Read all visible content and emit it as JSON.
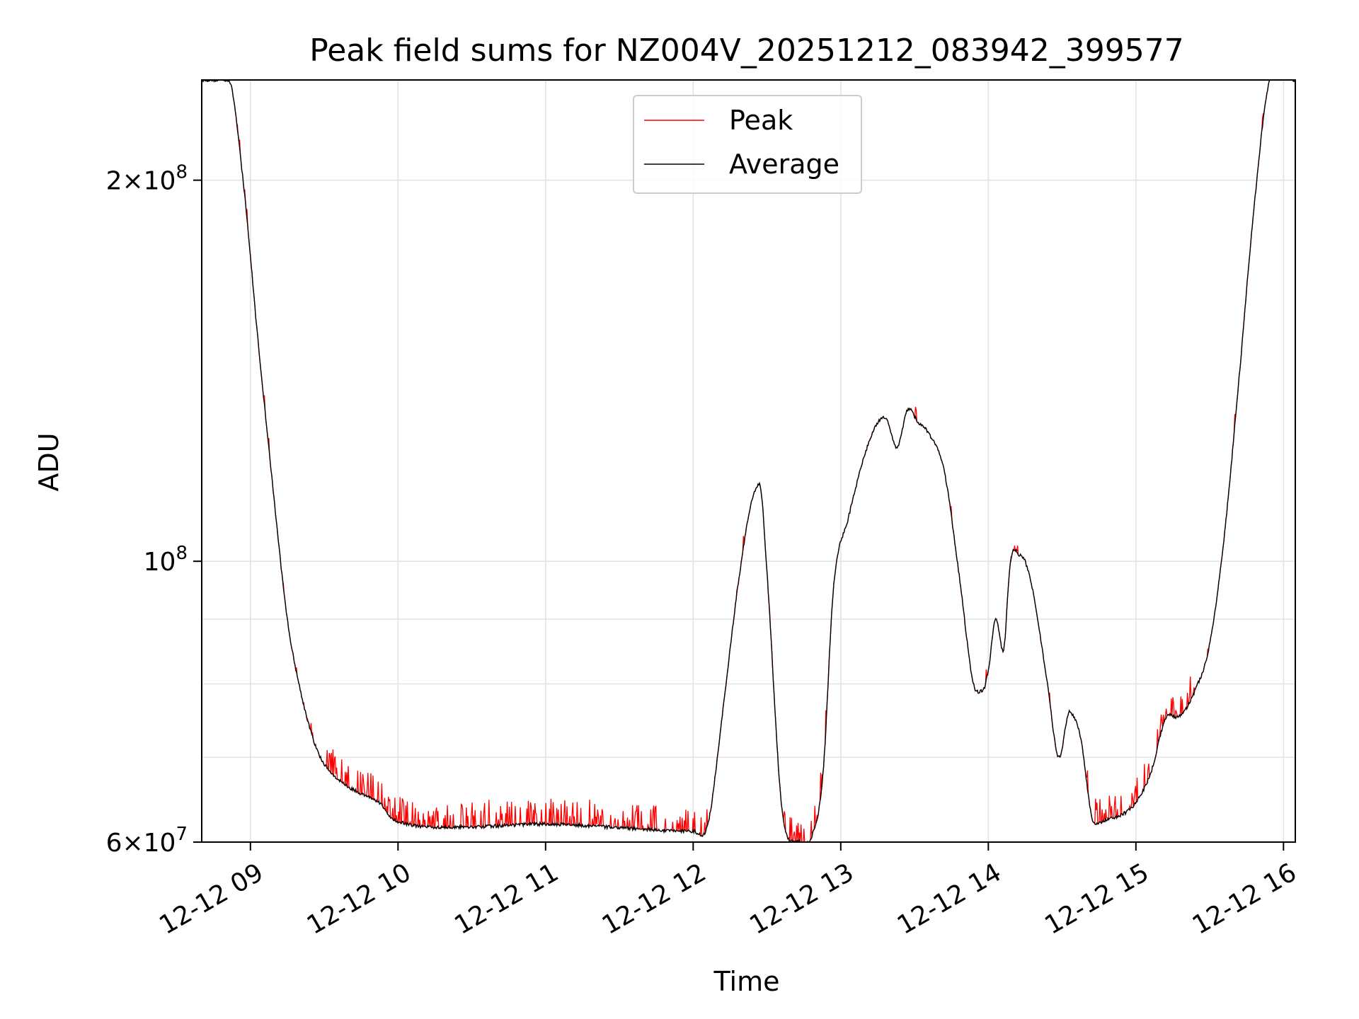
{
  "chart_data": {
    "type": "line",
    "title": "Peak field sums for NZ004V_20251212_083942_399577",
    "xlabel": "Time",
    "ylabel": "ADU",
    "yscale": "log",
    "ylim": [
      60000000,
      240000000
    ],
    "xlim_hours": [
      8.67,
      16.08
    ],
    "grid": true,
    "legend_position": "top-center",
    "x_tick_labels": [
      "12-12 09",
      "12-12 10",
      "12-12 11",
      "12-12 12",
      "12-12 13",
      "12-12 14",
      "12-12 15",
      "12-12 16"
    ],
    "x_tick_hours": [
      9,
      10,
      11,
      12,
      13,
      14,
      15,
      16
    ],
    "y_tick_labels": [
      {
        "value": 60000000,
        "mantissa": "6",
        "base": "10",
        "exponent": "7"
      },
      {
        "value": 100000000,
        "mantissa": "",
        "base": "10",
        "exponent": "8"
      },
      {
        "value": 200000000,
        "mantissa": "2",
        "base": "10",
        "exponent": "8"
      }
    ],
    "y_minor_grid": [
      70000000,
      80000000,
      90000000
    ],
    "series": [
      {
        "name": "Peak",
        "color": "#ff0000",
        "spiky": true
      },
      {
        "name": "Average",
        "color": "#000000",
        "spiky": false
      }
    ],
    "average_curve": {
      "hours": [
        8.67,
        8.85,
        8.95,
        9.05,
        9.15,
        9.25,
        9.35,
        9.45,
        9.55,
        9.65,
        9.75,
        9.9,
        9.93,
        10.0,
        10.5,
        11.0,
        11.5,
        12.0,
        12.1,
        12.2,
        12.3,
        12.4,
        12.45,
        12.5,
        12.6,
        12.7,
        12.8,
        12.88,
        12.95,
        13.05,
        13.2,
        13.3,
        13.38,
        13.46,
        13.52,
        13.6,
        13.7,
        13.8,
        13.9,
        13.96,
        14.0,
        14.05,
        14.1,
        14.15,
        14.22,
        14.3,
        14.4,
        14.48,
        14.55,
        14.62,
        14.72,
        14.8,
        14.92,
        15.0,
        15.1,
        15.2,
        15.3,
        15.4,
        15.5,
        15.6,
        15.7,
        15.8,
        15.9,
        16.08
      ],
      "values": [
        240000000,
        240000000,
        200000000,
        150000000,
        115000000,
        90000000,
        78000000,
        71000000,
        68000000,
        66500000,
        65500000,
        64000000,
        63000000,
        62300000,
        61700000,
        62000000,
        61600000,
        61200000,
        62000000,
        76000000,
        95000000,
        112000000,
        115000000,
        98000000,
        64000000,
        60200000,
        60500000,
        68000000,
        95000000,
        108000000,
        125000000,
        130000000,
        123000000,
        132000000,
        129000000,
        126000000,
        118000000,
        98000000,
        80000000,
        79000000,
        82000000,
        90000000,
        85000000,
        100000000,
        101000000,
        95000000,
        80000000,
        70000000,
        76000000,
        73000000,
        62000000,
        62500000,
        63200000,
        64500000,
        68000000,
        75000000,
        75500000,
        79000000,
        86000000,
        105000000,
        140000000,
        190000000,
        238000000,
        240000000
      ]
    }
  }
}
